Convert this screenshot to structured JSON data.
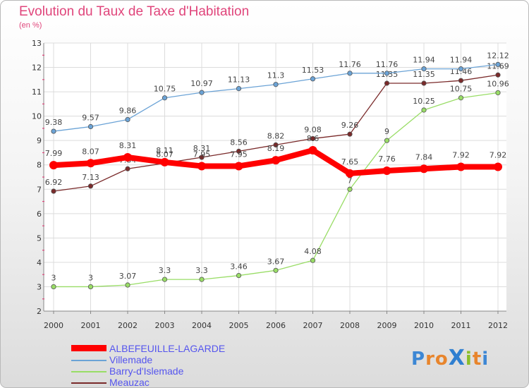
{
  "header": {
    "title": "Evolution du Taux de Taxe d'Habitation",
    "subtitle": "(en %)"
  },
  "logo": {
    "text": "ProXiti",
    "letters": [
      "P",
      "r",
      "o",
      "X",
      "i",
      "t",
      "i"
    ],
    "colors": [
      "#3d87d4",
      "#e8852c",
      "#e8852c",
      "#2f7fd0",
      "#8bbf2a",
      "#e8852c",
      "#3d87d4"
    ]
  },
  "chart_data": {
    "type": "line",
    "title": "Evolution du Taux de Taxe d'Habitation",
    "ylabel": "(en %)",
    "xlabel": "",
    "x": [
      "2000",
      "2001",
      "2002",
      "2003",
      "2004",
      "2005",
      "2006",
      "2007",
      "2008",
      "2009",
      "2010",
      "2011",
      "2012"
    ],
    "ylim": [
      2,
      13
    ],
    "yticks": [
      2,
      3,
      4,
      5,
      6,
      7,
      8,
      9,
      10,
      11,
      12,
      13
    ],
    "grid": true,
    "legend_position": "bottom-left",
    "series": [
      {
        "name": "ALBEFEUILLE-LAGARDE",
        "color": "#ff0000",
        "emphasis": true,
        "values": [
          7.99,
          8.07,
          8.31,
          8.11,
          7.95,
          7.95,
          8.19,
          8.6,
          7.65,
          7.76,
          7.84,
          7.92,
          7.92
        ],
        "labels": [
          "7.99",
          "8.07",
          "8.31",
          "8.11",
          "7.95",
          "7.95",
          "8.19",
          "8.6",
          "7.65",
          "7.76",
          "7.84",
          "7.92",
          "7.92"
        ]
      },
      {
        "name": "Villemade",
        "color": "#6ba3d6",
        "values": [
          9.38,
          9.57,
          9.86,
          10.75,
          10.97,
          11.13,
          11.3,
          11.53,
          11.76,
          11.76,
          11.94,
          11.94,
          12.12
        ],
        "labels": [
          "9.38",
          "9.57",
          "9.86",
          "10.75",
          "10.97",
          "11.13",
          "11.3",
          "11.53",
          "11.76",
          "11.76",
          "11.94",
          "11.94",
          "12.12"
        ]
      },
      {
        "name": "Barry-d'Islemade",
        "color": "#99dd66",
        "values": [
          3,
          3,
          3.07,
          3.3,
          3.3,
          3.46,
          3.67,
          4.08,
          7,
          9,
          10.25,
          10.75,
          10.96
        ],
        "labels": [
          "3",
          "3",
          "3.07",
          "3.3",
          "3.3",
          "3.46",
          "3.67",
          "4.08",
          "7",
          "9",
          "10.25",
          "10.75",
          "10.96"
        ]
      },
      {
        "name": "Meauzac",
        "color": "#7a2a2a",
        "values": [
          6.92,
          7.13,
          7.84,
          8.07,
          8.31,
          8.56,
          8.82,
          9.08,
          9.26,
          11.35,
          11.35,
          11.46,
          11.69
        ],
        "labels": [
          "6.92",
          "7.13",
          "7.84",
          "8.07",
          "8.31",
          "8.56",
          "8.82",
          "9.08",
          "9.26",
          "11.35",
          "11.35",
          "11.46",
          "11.69"
        ]
      }
    ]
  }
}
